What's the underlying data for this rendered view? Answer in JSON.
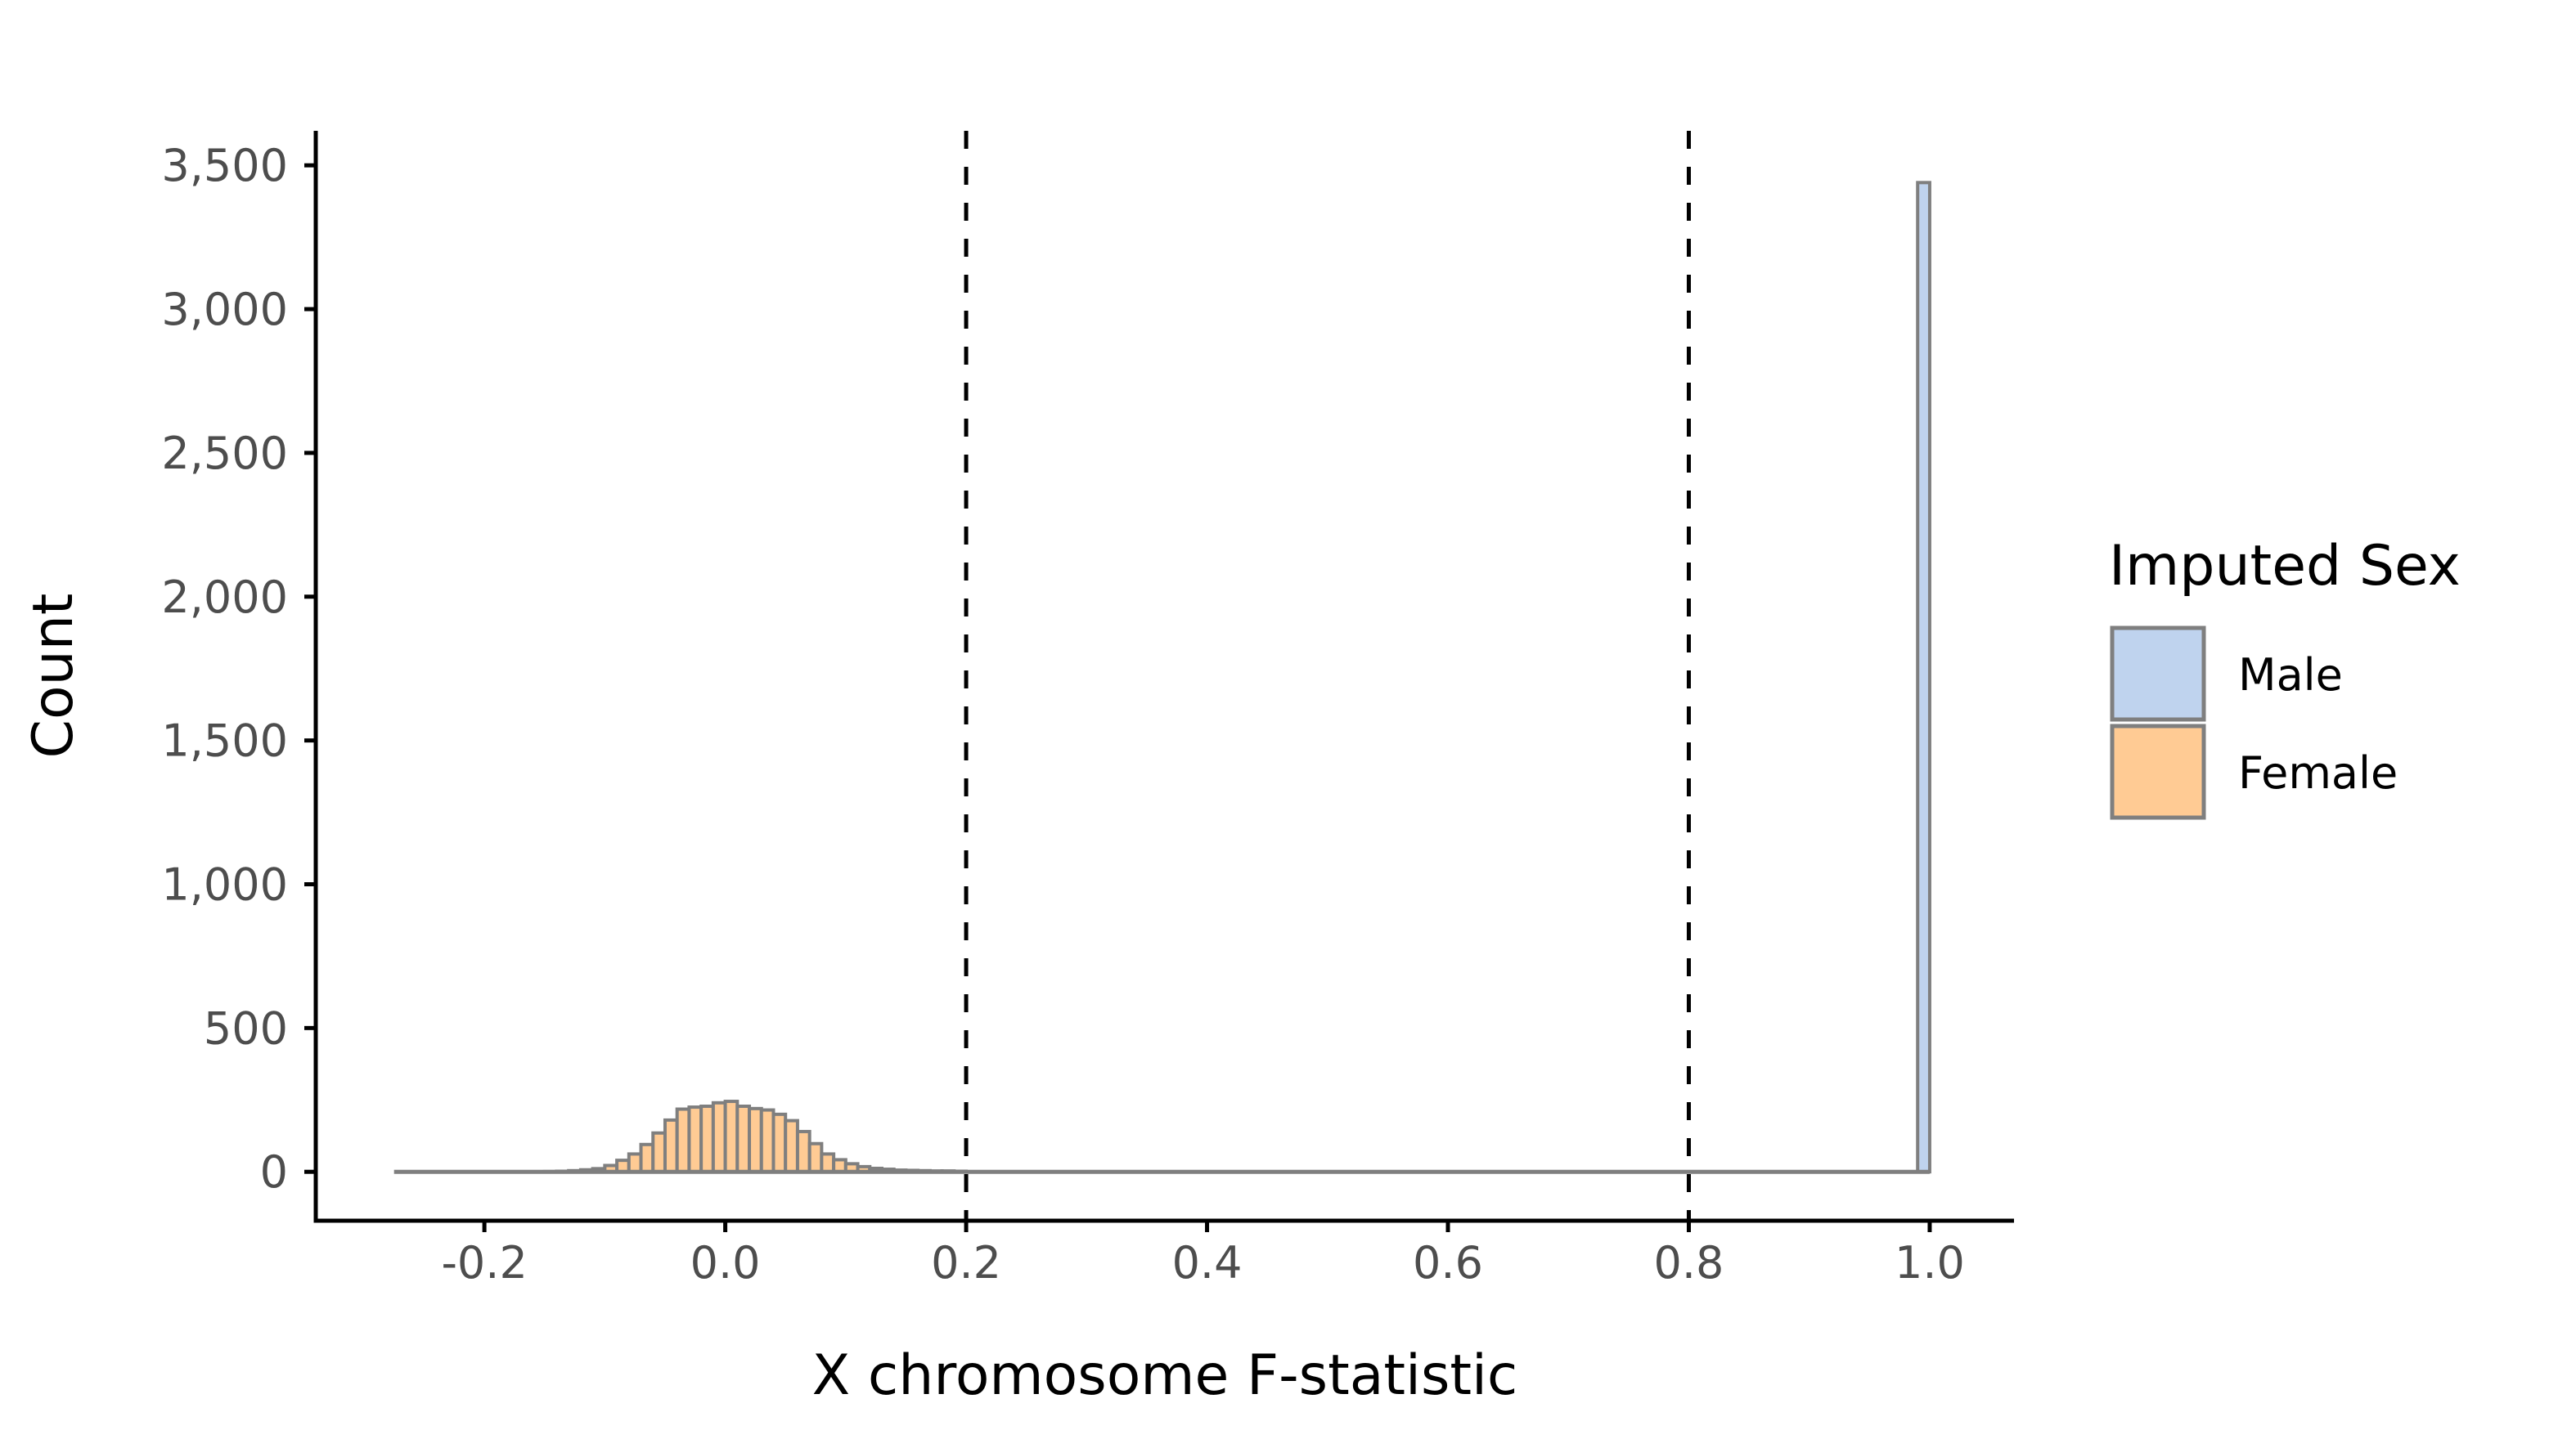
{
  "chart_data": {
    "type": "histogram",
    "xlabel": "X chromosome F-statistic",
    "ylabel": "Count",
    "xlim": [
      -0.34,
      1.07
    ],
    "ylim": [
      -170,
      3620
    ],
    "x_ticks": [
      -0.2,
      0.0,
      0.2,
      0.4,
      0.6,
      0.8,
      1.0
    ],
    "x_tick_labels": [
      "-0.2",
      "0.0",
      "0.2",
      "0.4",
      "0.6",
      "0.8",
      "1.0"
    ],
    "y_ticks": [
      0,
      500,
      1000,
      1500,
      2000,
      2500,
      3000,
      3500
    ],
    "y_tick_labels": [
      "0",
      "500",
      "1,000",
      "1,500",
      "2,000",
      "2,500",
      "3,000",
      "3,500"
    ],
    "reference_lines": [
      0.2,
      0.8
    ],
    "bin_width": 0.01,
    "series": [
      {
        "name": "Female",
        "color": "#ffcb94",
        "bins": [
          [
            -0.15,
            1
          ],
          [
            -0.14,
            2
          ],
          [
            -0.13,
            4
          ],
          [
            -0.12,
            7
          ],
          [
            -0.11,
            11
          ],
          [
            -0.1,
            22
          ],
          [
            -0.09,
            40
          ],
          [
            -0.08,
            62
          ],
          [
            -0.07,
            95
          ],
          [
            -0.06,
            135
          ],
          [
            -0.05,
            180
          ],
          [
            -0.04,
            218
          ],
          [
            -0.03,
            225
          ],
          [
            -0.02,
            228
          ],
          [
            -0.01,
            240
          ],
          [
            0.0,
            245
          ],
          [
            0.01,
            228
          ],
          [
            0.02,
            220
          ],
          [
            0.03,
            215
          ],
          [
            0.04,
            200
          ],
          [
            0.05,
            178
          ],
          [
            0.06,
            140
          ],
          [
            0.07,
            98
          ],
          [
            0.08,
            62
          ],
          [
            0.09,
            42
          ],
          [
            0.1,
            28
          ],
          [
            0.11,
            18
          ],
          [
            0.12,
            12
          ],
          [
            0.13,
            9
          ],
          [
            0.14,
            6
          ],
          [
            0.15,
            5
          ],
          [
            0.16,
            4
          ],
          [
            0.17,
            3
          ],
          [
            0.18,
            3
          ],
          [
            0.19,
            2
          ]
        ]
      },
      {
        "name": "Male",
        "color": "#bfd3ee",
        "bins": [
          [
            0.99,
            3440
          ]
        ]
      }
    ],
    "legend": {
      "title": "Imputed Sex",
      "position": "right",
      "entries": [
        {
          "label": "Male",
          "color": "#bfd3ee"
        },
        {
          "label": "Female",
          "color": "#ffcb94"
        }
      ]
    },
    "bar_outline_color": "#7f7f7f",
    "grid": false
  }
}
